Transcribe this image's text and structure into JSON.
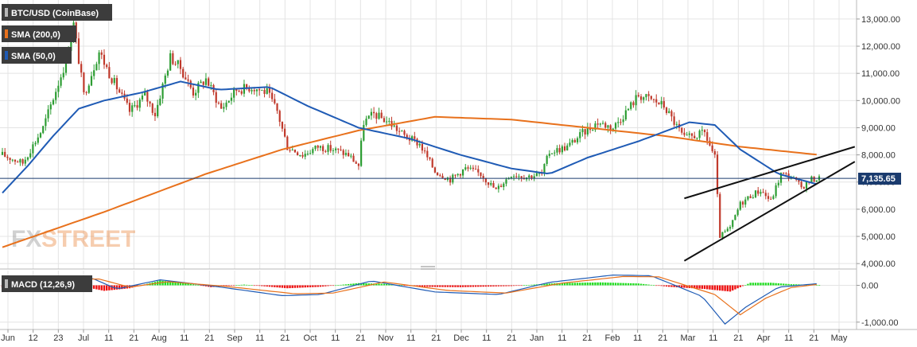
{
  "chart_data": [
    {
      "type": "candlestick",
      "legend": [
        {
          "label": "BTC/USD (CoinBase)",
          "color": "#2e2e2e"
        },
        {
          "label": "SMA (200,0)",
          "color": "#e8711c"
        },
        {
          "label": "SMA (50,0)",
          "color": "#1f5bb5"
        }
      ],
      "last_price_label": "7,135.65",
      "last_price": 7135.65,
      "ylim": [
        3800,
        13700
      ],
      "y_ticks": [
        {
          "value": 4000,
          "label": "4,000.00"
        },
        {
          "value": 5000,
          "label": "5,000.00"
        },
        {
          "value": 6000,
          "label": "6,000.00"
        },
        {
          "value": 7000,
          "label": "7,000.00"
        },
        {
          "value": 8000,
          "label": "8,000.00"
        },
        {
          "value": 9000,
          "label": "9,000.00"
        },
        {
          "value": 10000,
          "label": "10,000.00"
        },
        {
          "value": 11000,
          "label": "11,000.00"
        },
        {
          "value": 12000,
          "label": "12,000.00"
        },
        {
          "value": 13000,
          "label": "13,000.00"
        }
      ],
      "x_ticks": [
        "Jun",
        "12",
        "23",
        "Jul",
        "11",
        "21",
        "Aug",
        "11",
        "21",
        "Sep",
        "11",
        "21",
        "Oct",
        "11",
        "21",
        "Nov",
        "11",
        "21",
        "Dec",
        "11",
        "21",
        "Jan",
        "11",
        "21",
        "Feb",
        "11",
        "21",
        "Mar",
        "11",
        "21",
        "Apr",
        "11",
        "21",
        "May"
      ],
      "price_anchors": [
        {
          "day": 0,
          "close": 8000
        },
        {
          "day": 8,
          "close": 7700
        },
        {
          "day": 16,
          "close": 9000
        },
        {
          "day": 24,
          "close": 11200
        },
        {
          "day": 28,
          "close": 12800
        },
        {
          "day": 32,
          "close": 10200
        },
        {
          "day": 38,
          "close": 11800
        },
        {
          "day": 42,
          "close": 11000
        },
        {
          "day": 46,
          "close": 10300
        },
        {
          "day": 50,
          "close": 9600
        },
        {
          "day": 56,
          "close": 10200
        },
        {
          "day": 60,
          "close": 9500
        },
        {
          "day": 66,
          "close": 11600
        },
        {
          "day": 70,
          "close": 11200
        },
        {
          "day": 75,
          "close": 10300
        },
        {
          "day": 80,
          "close": 10800
        },
        {
          "day": 86,
          "close": 9700
        },
        {
          "day": 92,
          "close": 10400
        },
        {
          "day": 98,
          "close": 10500
        },
        {
          "day": 104,
          "close": 10300
        },
        {
          "day": 108,
          "close": 9600
        },
        {
          "day": 112,
          "close": 8300
        },
        {
          "day": 118,
          "close": 8000
        },
        {
          "day": 124,
          "close": 8300
        },
        {
          "day": 130,
          "close": 8200
        },
        {
          "day": 136,
          "close": 8000
        },
        {
          "day": 140,
          "close": 7600
        },
        {
          "day": 142,
          "close": 9200
        },
        {
          "day": 146,
          "close": 9500
        },
        {
          "day": 152,
          "close": 9200
        },
        {
          "day": 158,
          "close": 8700
        },
        {
          "day": 164,
          "close": 8400
        },
        {
          "day": 170,
          "close": 7400
        },
        {
          "day": 176,
          "close": 7100
        },
        {
          "day": 182,
          "close": 7500
        },
        {
          "day": 188,
          "close": 7300
        },
        {
          "day": 194,
          "close": 6700
        },
        {
          "day": 200,
          "close": 7300
        },
        {
          "day": 206,
          "close": 7200
        },
        {
          "day": 212,
          "close": 7300
        },
        {
          "day": 215,
          "close": 8100
        },
        {
          "day": 222,
          "close": 8300
        },
        {
          "day": 228,
          "close": 8800
        },
        {
          "day": 234,
          "close": 9200
        },
        {
          "day": 240,
          "close": 9000
        },
        {
          "day": 246,
          "close": 9700
        },
        {
          "day": 250,
          "close": 10200
        },
        {
          "day": 256,
          "close": 10000
        },
        {
          "day": 260,
          "close": 9800
        },
        {
          "day": 264,
          "close": 9200
        },
        {
          "day": 268,
          "close": 8600
        },
        {
          "day": 272,
          "close": 8700
        },
        {
          "day": 276,
          "close": 8800
        },
        {
          "day": 280,
          "close": 7900
        },
        {
          "day": 282,
          "close": 5000
        },
        {
          "day": 286,
          "close": 5300
        },
        {
          "day": 290,
          "close": 6200
        },
        {
          "day": 294,
          "close": 6500
        },
        {
          "day": 298,
          "close": 6700
        },
        {
          "day": 302,
          "close": 6300
        },
        {
          "day": 306,
          "close": 7300
        },
        {
          "day": 310,
          "close": 7200
        },
        {
          "day": 314,
          "close": 6800
        },
        {
          "day": 318,
          "close": 7100
        },
        {
          "day": 321,
          "close": 7136
        }
      ],
      "sma200": [
        {
          "day": 0,
          "value": 4600
        },
        {
          "day": 40,
          "value": 5900
        },
        {
          "day": 80,
          "value": 7300
        },
        {
          "day": 110,
          "value": 8200
        },
        {
          "day": 140,
          "value": 8900
        },
        {
          "day": 170,
          "value": 9400
        },
        {
          "day": 200,
          "value": 9300
        },
        {
          "day": 230,
          "value": 9000
        },
        {
          "day": 260,
          "value": 8700
        },
        {
          "day": 290,
          "value": 8300
        },
        {
          "day": 321,
          "value": 8000
        }
      ],
      "sma50": [
        {
          "day": 0,
          "value": 6600
        },
        {
          "day": 10,
          "value": 7600
        },
        {
          "day": 20,
          "value": 8700
        },
        {
          "day": 30,
          "value": 9700
        },
        {
          "day": 40,
          "value": 10000
        },
        {
          "day": 55,
          "value": 10300
        },
        {
          "day": 70,
          "value": 10700
        },
        {
          "day": 85,
          "value": 10400
        },
        {
          "day": 105,
          "value": 10500
        },
        {
          "day": 120,
          "value": 9800
        },
        {
          "day": 140,
          "value": 9000
        },
        {
          "day": 160,
          "value": 8600
        },
        {
          "day": 180,
          "value": 8000
        },
        {
          "day": 200,
          "value": 7500
        },
        {
          "day": 215,
          "value": 7300
        },
        {
          "day": 230,
          "value": 7900
        },
        {
          "day": 250,
          "value": 8500
        },
        {
          "day": 270,
          "value": 9200
        },
        {
          "day": 280,
          "value": 9100
        },
        {
          "day": 290,
          "value": 8200
        },
        {
          "day": 305,
          "value": 7300
        },
        {
          "day": 321,
          "value": 6900
        }
      ],
      "trendlines": [
        {
          "from": {
            "day": 268,
            "value": 6400
          },
          "to": {
            "day": 335,
            "value": 8300
          }
        },
        {
          "from": {
            "day": 268,
            "value": 4100
          },
          "to": {
            "day": 335,
            "value": 7750
          }
        }
      ]
    },
    {
      "type": "macd",
      "legend": [
        {
          "label": "MACD (12,26,9)",
          "color": "#2e2e2e"
        }
      ],
      "ylim": [
        -1200,
        400
      ],
      "y_ticks": [
        {
          "value": 0,
          "label": "0.00"
        },
        {
          "value": -1000,
          "label": "-1,000.00"
        }
      ],
      "histogram_anchors": [
        {
          "day": 0,
          "value": -60
        },
        {
          "day": 15,
          "value": 60
        },
        {
          "day": 25,
          "value": 160
        },
        {
          "day": 32,
          "value": -40
        },
        {
          "day": 40,
          "value": -150
        },
        {
          "day": 50,
          "value": -80
        },
        {
          "day": 62,
          "value": 130
        },
        {
          "day": 72,
          "value": 60
        },
        {
          "day": 82,
          "value": -50
        },
        {
          "day": 95,
          "value": 20
        },
        {
          "day": 112,
          "value": -80
        },
        {
          "day": 125,
          "value": -40
        },
        {
          "day": 140,
          "value": 60
        },
        {
          "day": 150,
          "value": 40
        },
        {
          "day": 165,
          "value": -40
        },
        {
          "day": 180,
          "value": -50
        },
        {
          "day": 200,
          "value": -20
        },
        {
          "day": 218,
          "value": 60
        },
        {
          "day": 235,
          "value": 80
        },
        {
          "day": 250,
          "value": 50
        },
        {
          "day": 262,
          "value": -40
        },
        {
          "day": 276,
          "value": -100
        },
        {
          "day": 286,
          "value": -170
        },
        {
          "day": 294,
          "value": 70
        },
        {
          "day": 302,
          "value": 70
        },
        {
          "day": 310,
          "value": 30
        },
        {
          "day": 321,
          "value": 10
        }
      ],
      "macd_anchors": [
        {
          "day": 0,
          "value": -60
        },
        {
          "day": 20,
          "value": 250
        },
        {
          "day": 35,
          "value": 200
        },
        {
          "day": 45,
          "value": -100
        },
        {
          "day": 62,
          "value": 150
        },
        {
          "day": 85,
          "value": -40
        },
        {
          "day": 110,
          "value": -280
        },
        {
          "day": 125,
          "value": -250
        },
        {
          "day": 145,
          "value": 120
        },
        {
          "day": 170,
          "value": -180
        },
        {
          "day": 195,
          "value": -250
        },
        {
          "day": 215,
          "value": 80
        },
        {
          "day": 240,
          "value": 280
        },
        {
          "day": 255,
          "value": 260
        },
        {
          "day": 275,
          "value": -300
        },
        {
          "day": 284,
          "value": -1050
        },
        {
          "day": 292,
          "value": -600
        },
        {
          "day": 305,
          "value": -50
        },
        {
          "day": 321,
          "value": 50
        }
      ],
      "signal_anchors": [
        {
          "day": 0,
          "value": -80
        },
        {
          "day": 22,
          "value": 180
        },
        {
          "day": 38,
          "value": 170
        },
        {
          "day": 50,
          "value": -50
        },
        {
          "day": 65,
          "value": 100
        },
        {
          "day": 88,
          "value": -30
        },
        {
          "day": 115,
          "value": -230
        },
        {
          "day": 130,
          "value": -210
        },
        {
          "day": 150,
          "value": 90
        },
        {
          "day": 175,
          "value": -140
        },
        {
          "day": 198,
          "value": -210
        },
        {
          "day": 220,
          "value": 60
        },
        {
          "day": 244,
          "value": 240
        },
        {
          "day": 258,
          "value": 230
        },
        {
          "day": 280,
          "value": -250
        },
        {
          "day": 290,
          "value": -800
        },
        {
          "day": 300,
          "value": -350
        },
        {
          "day": 310,
          "value": -60
        },
        {
          "day": 321,
          "value": 30
        }
      ]
    }
  ],
  "watermark": {
    "text_fx": "FX",
    "text_street": "STREET"
  },
  "colors": {
    "up": "#2d9d33",
    "down": "#c0392b",
    "sma200": "#e8711c",
    "sma50": "#1f5bb5",
    "macd": "#1f5bb5",
    "signal": "#e8711c",
    "hist_up": "#22dd22",
    "hist_down": "#ee1111",
    "grid": "#e4e4e4",
    "last_line": "#1a3b6e"
  }
}
